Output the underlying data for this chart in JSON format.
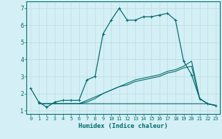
{
  "xlabel": "Humidex (Indice chaleur)",
  "background_color": "#d4eff5",
  "grid_color": "#b8dde5",
  "line_color": "#006b6b",
  "spine_color": "#006b6b",
  "xlim": [
    -0.5,
    23.5
  ],
  "ylim": [
    0.8,
    7.4
  ],
  "xticks": [
    0,
    1,
    2,
    3,
    4,
    5,
    6,
    7,
    8,
    9,
    10,
    11,
    12,
    13,
    14,
    15,
    16,
    17,
    18,
    19,
    20,
    21,
    22,
    23
  ],
  "yticks": [
    1,
    2,
    3,
    4,
    5,
    6,
    7
  ],
  "curve1_x": [
    0,
    1,
    2,
    3,
    4,
    5,
    6,
    7,
    8,
    9,
    10,
    11,
    12,
    13,
    14,
    15,
    16,
    17,
    18,
    19,
    20,
    21,
    22,
    23
  ],
  "curve1_y": [
    2.3,
    1.5,
    1.2,
    1.5,
    1.6,
    1.6,
    1.6,
    2.8,
    3.0,
    5.5,
    6.3,
    7.0,
    6.3,
    6.3,
    6.5,
    6.5,
    6.6,
    6.7,
    6.3,
    3.9,
    3.1,
    1.7,
    1.4,
    1.3
  ],
  "curve2_x": [
    1,
    2,
    3,
    4,
    5,
    6,
    7,
    8,
    9,
    10,
    11,
    12,
    13,
    14,
    15,
    16,
    17,
    18,
    19,
    20,
    21,
    22,
    23
  ],
  "curve2_y": [
    1.4,
    1.4,
    1.4,
    1.4,
    1.4,
    1.4,
    1.4,
    1.4,
    1.4,
    1.4,
    1.4,
    1.4,
    1.4,
    1.4,
    1.4,
    1.4,
    1.4,
    1.4,
    1.4,
    1.4,
    1.4,
    1.4,
    1.3
  ],
  "curve3_x": [
    1,
    2,
    3,
    4,
    5,
    6,
    7,
    8,
    9,
    10,
    11,
    12,
    13,
    14,
    15,
    16,
    17,
    18,
    19,
    20,
    21,
    22,
    23
  ],
  "curve3_y": [
    1.4,
    1.4,
    1.4,
    1.4,
    1.4,
    1.4,
    1.5,
    1.7,
    2.0,
    2.2,
    2.4,
    2.5,
    2.7,
    2.8,
    2.9,
    3.0,
    3.2,
    3.3,
    3.5,
    3.6,
    1.7,
    1.4,
    1.3
  ],
  "curve4_x": [
    1,
    2,
    3,
    4,
    5,
    6,
    7,
    8,
    9,
    10,
    11,
    12,
    13,
    14,
    15,
    16,
    17,
    18,
    19,
    20,
    21,
    22,
    23
  ],
  "curve4_y": [
    1.4,
    1.4,
    1.4,
    1.4,
    1.4,
    1.4,
    1.6,
    1.8,
    2.0,
    2.2,
    2.4,
    2.6,
    2.8,
    2.9,
    3.0,
    3.1,
    3.3,
    3.4,
    3.6,
    3.9,
    1.7,
    1.4,
    1.3
  ]
}
